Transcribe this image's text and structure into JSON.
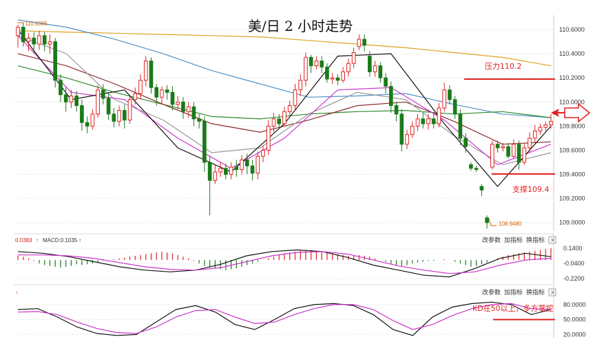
{
  "title": "美/日 2 小时走势",
  "colors": {
    "up": "#e02020",
    "down": "#1a7a1a",
    "ma_black": "#111111",
    "ma_magenta": "#cc33cc",
    "ma_gray": "#999999",
    "ma_darkred": "#8b2a2a",
    "ma_green": "#2c8a2c",
    "ma_blue": "#4a90c8",
    "ma_orange": "#e0a020",
    "annotation": "#e02020"
  },
  "toolbar": {
    "params_label": "改参数",
    "add_indicator_label": "加指标",
    "switch_indicator_label": "换指标",
    "close_symbol": "×"
  },
  "annotations": {
    "high_label": "110.6385",
    "low_label": "108.9480",
    "resistance_label": "压力110.2",
    "support_label": "支撑109.4",
    "kd_note": "KD在50以上，多方掌控"
  },
  "macd_header": {
    "left": "0.0383",
    "middle": "MACD:0.1035"
  },
  "chart_data": [
    {
      "type": "candlestick",
      "title": "美/日 2 小时走势",
      "y_ticks": [
        "110.6000",
        "110.4000",
        "110.2000",
        "110.0000",
        "109.8000",
        "109.6000",
        "109.4000",
        "109.2000",
        "109.0000"
      ],
      "ylim": [
        108.93,
        110.72
      ],
      "levels": {
        "resistance": 110.2,
        "support": 109.4
      },
      "high": 110.6385,
      "low": 108.948,
      "candles": [
        [
          110.55,
          110.62,
          110.45,
          110.64
        ],
        [
          110.62,
          110.5,
          110.46,
          110.66
        ],
        [
          110.5,
          110.53,
          110.42,
          110.57
        ],
        [
          110.53,
          110.48,
          110.4,
          110.58
        ],
        [
          110.48,
          110.55,
          110.43,
          110.59
        ],
        [
          110.55,
          110.48,
          110.42,
          110.58
        ],
        [
          110.48,
          110.5,
          110.4,
          110.56
        ],
        [
          110.5,
          110.18,
          110.12,
          110.53
        ],
        [
          110.18,
          110.06,
          110.0,
          110.23
        ],
        [
          110.06,
          110.0,
          109.92,
          110.12
        ],
        [
          110.0,
          110.05,
          109.95,
          110.1
        ],
        [
          110.05,
          109.97,
          109.92,
          110.09
        ],
        [
          109.97,
          109.83,
          109.76,
          110.02
        ],
        [
          109.83,
          109.8,
          109.74,
          109.88
        ],
        [
          109.8,
          109.9,
          109.77,
          109.94
        ],
        [
          109.9,
          110.1,
          109.87,
          110.14
        ],
        [
          110.1,
          110.03,
          109.98,
          110.15
        ],
        [
          110.03,
          109.9,
          109.85,
          110.07
        ],
        [
          109.9,
          109.84,
          109.79,
          109.95
        ],
        [
          109.84,
          109.93,
          109.8,
          109.97
        ],
        [
          109.93,
          109.85,
          109.78,
          109.98
        ],
        [
          109.85,
          110.02,
          109.82,
          110.06
        ],
        [
          110.02,
          110.07,
          109.98,
          110.12
        ],
        [
          110.07,
          110.18,
          110.02,
          110.23
        ],
        [
          110.18,
          110.34,
          110.13,
          110.38
        ],
        [
          110.34,
          110.12,
          110.07,
          110.37
        ],
        [
          110.12,
          110.04,
          109.97,
          110.15
        ],
        [
          110.04,
          110.1,
          109.98,
          110.13
        ],
        [
          110.1,
          110.08,
          110.02,
          110.14
        ],
        [
          110.08,
          109.98,
          109.93,
          110.13
        ],
        [
          109.98,
          110.0,
          109.94,
          110.05
        ],
        [
          110.0,
          109.92,
          109.86,
          110.04
        ],
        [
          109.92,
          109.96,
          109.87,
          110.0
        ],
        [
          109.96,
          109.86,
          109.8,
          110.0
        ],
        [
          109.86,
          109.84,
          109.78,
          109.9
        ],
        [
          109.84,
          109.5,
          109.42,
          109.88
        ],
        [
          109.5,
          109.35,
          109.06,
          109.55
        ],
        [
          109.35,
          109.42,
          109.32,
          109.48
        ],
        [
          109.42,
          109.45,
          109.38,
          109.5
        ],
        [
          109.45,
          109.4,
          109.36,
          109.49
        ],
        [
          109.4,
          109.46,
          109.36,
          109.5
        ],
        [
          109.46,
          109.44,
          109.38,
          109.52
        ],
        [
          109.44,
          109.52,
          109.4,
          109.56
        ],
        [
          109.52,
          109.47,
          109.4,
          109.57
        ],
        [
          109.47,
          109.41,
          109.35,
          109.52
        ],
        [
          109.41,
          109.55,
          109.36,
          109.59
        ],
        [
          109.55,
          109.6,
          109.5,
          109.64
        ],
        [
          109.6,
          109.8,
          109.56,
          109.85
        ],
        [
          109.8,
          109.86,
          109.75,
          109.91
        ],
        [
          109.86,
          109.82,
          109.78,
          109.9
        ],
        [
          109.82,
          109.92,
          109.8,
          109.96
        ],
        [
          109.92,
          109.97,
          109.87,
          110.01
        ],
        [
          109.97,
          110.1,
          109.93,
          110.15
        ],
        [
          110.1,
          110.18,
          110.05,
          110.23
        ],
        [
          110.18,
          110.37,
          110.13,
          110.41
        ],
        [
          110.37,
          110.3,
          110.24,
          110.39
        ],
        [
          110.3,
          110.34,
          110.27,
          110.38
        ],
        [
          110.34,
          110.29,
          110.24,
          110.38
        ],
        [
          110.29,
          110.19,
          110.16,
          110.32
        ],
        [
          110.19,
          110.2,
          110.15,
          110.24
        ],
        [
          110.2,
          110.18,
          110.14,
          110.23
        ],
        [
          110.18,
          110.25,
          110.16,
          110.29
        ],
        [
          110.25,
          110.32,
          110.21,
          110.36
        ],
        [
          110.32,
          110.41,
          110.28,
          110.45
        ],
        [
          110.46,
          110.52,
          110.43,
          110.56
        ],
        [
          110.52,
          110.47,
          110.42,
          110.56
        ],
        [
          110.38,
          110.25,
          110.21,
          110.42
        ],
        [
          110.25,
          110.3,
          110.21,
          110.34
        ],
        [
          110.3,
          110.2,
          110.16,
          110.33
        ],
        [
          110.2,
          110.13,
          110.07,
          110.24
        ],
        [
          110.13,
          109.97,
          109.91,
          110.17
        ],
        [
          109.97,
          109.9,
          109.84,
          110.0
        ],
        [
          109.9,
          109.65,
          109.59,
          109.94
        ],
        [
          109.65,
          109.73,
          109.61,
          109.77
        ],
        [
          109.73,
          109.8,
          109.7,
          109.84
        ],
        [
          109.8,
          109.86,
          109.76,
          109.9
        ],
        [
          109.86,
          109.82,
          109.78,
          109.91
        ],
        [
          109.82,
          109.86,
          109.77,
          109.9
        ],
        [
          109.86,
          109.82,
          109.78,
          109.9
        ],
        [
          109.82,
          109.95,
          109.79,
          109.99
        ],
        [
          109.95,
          110.1,
          109.92,
          110.16
        ],
        [
          110.1,
          110.02,
          109.98,
          110.14
        ],
        [
          110.02,
          109.9,
          109.86,
          110.05
        ],
        [
          109.9,
          109.7,
          109.64,
          109.94
        ],
        [
          109.7,
          109.63,
          109.58,
          109.74
        ],
        [
          109.48,
          109.45,
          109.43,
          109.5
        ],
        [
          109.45,
          109.44,
          109.42,
          109.47
        ],
        [
          109.3,
          109.27,
          109.22,
          109.32
        ],
        [
          109.04,
          109.0,
          108.95,
          109.06
        ],
        [
          109.46,
          109.65,
          109.44,
          109.68
        ],
        [
          109.65,
          109.62,
          109.58,
          109.68
        ],
        [
          109.62,
          109.63,
          109.59,
          109.66
        ],
        [
          109.63,
          109.55,
          109.53,
          109.66
        ],
        [
          109.55,
          109.65,
          109.53,
          109.69
        ],
        [
          109.65,
          109.5,
          109.44,
          109.68
        ],
        [
          109.5,
          109.62,
          109.48,
          109.66
        ],
        [
          109.62,
          109.7,
          109.58,
          109.75
        ],
        [
          109.7,
          109.76,
          109.66,
          109.81
        ],
        [
          109.76,
          109.79,
          109.73,
          109.82
        ],
        [
          109.79,
          109.81,
          109.76,
          109.84
        ],
        [
          109.81,
          109.84,
          109.78,
          109.9
        ]
      ],
      "ma_series": [
        {
          "color": "#e0a020",
          "values": [
            110.59,
            110.58,
            110.57,
            110.56,
            110.55,
            110.54,
            110.51,
            110.48,
            110.45,
            110.41,
            110.37,
            110.3
          ]
        },
        {
          "color": "#4a90c8",
          "values": [
            110.68,
            110.62,
            110.52,
            110.4,
            110.26,
            110.15,
            110.04,
            110.05,
            110.07,
            109.98,
            109.9,
            109.87
          ]
        },
        {
          "color": "#2c8a2c",
          "values": [
            110.3,
            110.2,
            110.08,
            109.98,
            109.88,
            109.86,
            109.9,
            109.92,
            109.93,
            109.9,
            109.92,
            109.87
          ]
        },
        {
          "color": "#8b2a2a",
          "values": [
            110.4,
            110.3,
            110.15,
            109.98,
            109.82,
            109.75,
            109.85,
            109.97,
            110.0,
            109.84,
            109.65,
            109.67
          ]
        },
        {
          "color": "#999999",
          "values": [
            110.55,
            110.4,
            110.02,
            109.85,
            109.58,
            109.62,
            109.9,
            110.08,
            110.02,
            109.72,
            109.48,
            109.58
          ]
        },
        {
          "color": "#cc33cc",
          "values": [
            110.55,
            110.08,
            110.02,
            109.7,
            109.45,
            109.7,
            110.1,
            110.12,
            109.85,
            109.48,
            109.65
          ]
        },
        {
          "color": "#111111",
          "values": [
            110.6,
            110.02,
            110.1,
            109.62,
            109.42,
            109.82,
            110.38,
            110.4,
            109.82,
            109.3,
            109.8
          ]
        }
      ]
    },
    {
      "type": "bar",
      "name": "MACD",
      "y_ticks": [
        "0.1400",
        "-0.0400",
        "-0.2200"
      ],
      "ylim": [
        -0.26,
        0.18
      ],
      "values": [
        0.05,
        0.04,
        0.02,
        -0.01,
        -0.04,
        -0.06,
        -0.07,
        -0.08,
        -0.09,
        -0.08,
        -0.07,
        -0.05,
        -0.06,
        -0.05,
        -0.04,
        -0.03,
        -0.01,
        0.0,
        0.01,
        0.02,
        0.03,
        0.04,
        0.05,
        0.06,
        0.07,
        0.08,
        0.09,
        0.1,
        0.09,
        0.08,
        0.06,
        0.04,
        0.02,
        -0.01,
        -0.04,
        -0.07,
        -0.09,
        -0.1,
        -0.11,
        -0.12,
        -0.11,
        -0.1,
        -0.08,
        -0.06,
        -0.04,
        -0.02,
        0.0,
        0.02,
        0.04,
        0.06,
        0.08,
        0.09,
        0.1,
        0.11,
        0.12,
        0.12,
        0.11,
        0.1,
        0.09,
        0.08,
        0.07,
        0.06,
        0.05,
        0.05,
        0.06,
        0.05,
        0.04,
        0.02,
        0.0,
        -0.02,
        -0.04,
        -0.06,
        -0.07,
        -0.06,
        -0.04,
        -0.03,
        -0.02,
        -0.01,
        -0.01,
        0.0,
        0.01,
        0.0,
        -0.02,
        -0.04,
        -0.06,
        -0.08,
        -0.07,
        -0.05,
        -0.03,
        0.0,
        0.02,
        0.04,
        0.06,
        0.07,
        0.08,
        0.09,
        0.1,
        0.11,
        0.12,
        0.13,
        0.14
      ],
      "lines": [
        {
          "color": "#111111",
          "values": [
            0.1,
            0.08,
            0.04,
            -0.02,
            -0.08,
            -0.12,
            -0.14,
            -0.12,
            -0.05,
            0.05,
            0.1,
            0.12,
            0.1,
            0.03,
            -0.06,
            -0.12,
            -0.18,
            -0.2,
            -0.1,
            0.02,
            0.08,
            0.04
          ]
        },
        {
          "color": "#cc33cc",
          "values": [
            0.06,
            0.06,
            0.05,
            0.02,
            -0.03,
            -0.08,
            -0.11,
            -0.12,
            -0.09,
            -0.02,
            0.05,
            0.09,
            0.1,
            0.07,
            0.0,
            -0.07,
            -0.12,
            -0.16,
            -0.14,
            -0.06,
            0.0,
            0.02
          ]
        }
      ]
    },
    {
      "type": "line",
      "name": "KD",
      "y_ticks": [
        "80.0000",
        "50.0000",
        "20.0000"
      ],
      "ylim": [
        15,
        95
      ],
      "levels": {
        "threshold": 50
      },
      "series": [
        {
          "color": "#111111",
          "values": [
            70,
            72,
            55,
            35,
            22,
            18,
            20,
            45,
            70,
            78,
            65,
            40,
            30,
            50,
            72,
            80,
            82,
            78,
            60,
            30,
            18,
            55,
            75,
            82,
            85,
            80,
            60,
            70
          ]
        },
        {
          "color": "#cc33cc",
          "values": [
            65,
            66,
            60,
            45,
            32,
            24,
            22,
            35,
            55,
            68,
            70,
            55,
            42,
            45,
            60,
            72,
            80,
            80,
            70,
            48,
            30,
            40,
            58,
            72,
            80,
            82,
            72,
            70
          ]
        }
      ]
    }
  ]
}
